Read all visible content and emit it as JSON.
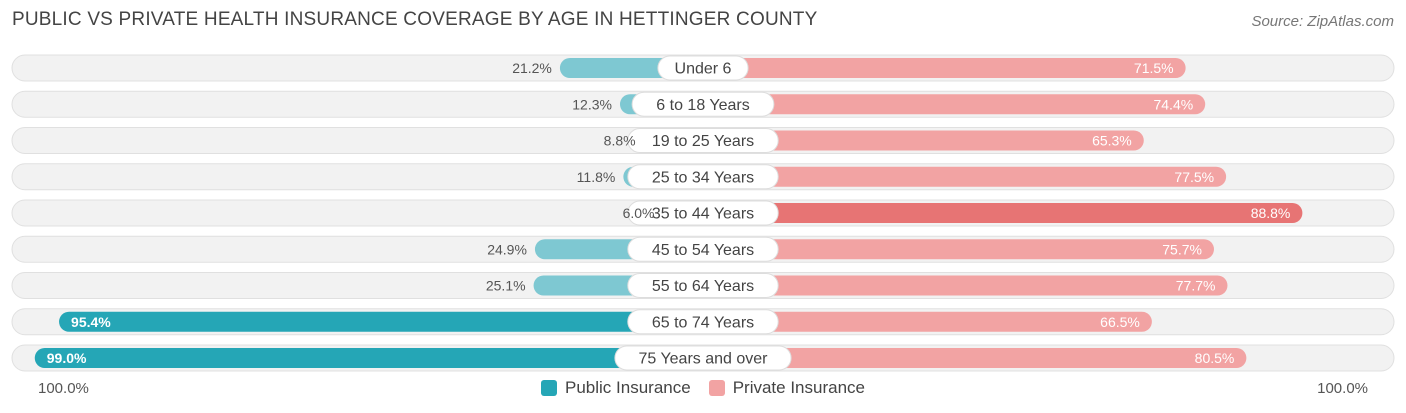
{
  "title": "PUBLIC VS PRIVATE HEALTH INSURANCE COVERAGE BY AGE IN HETTINGER COUNTY",
  "source": "Source: ZipAtlas.com",
  "axis_left_label": "100.0%",
  "axis_right_label": "100.0%",
  "colors": {
    "public_light": "#7ec8d2",
    "public_dark": "#25a6b6",
    "private_light": "#f2a3a3",
    "private_dark": "#e77474",
    "row_bg": "#f2f2f2"
  },
  "chart_data": {
    "type": "bar",
    "orientation": "horizontal-diverging",
    "title": "PUBLIC VS PRIVATE HEALTH INSURANCE COVERAGE BY AGE IN HETTINGER COUNTY",
    "categories": [
      "Under 6",
      "6 to 18 Years",
      "19 to 25 Years",
      "25 to 34 Years",
      "35 to 44 Years",
      "45 to 54 Years",
      "55 to 64 Years",
      "65 to 74 Years",
      "75 Years and over"
    ],
    "series": [
      {
        "name": "Public Insurance",
        "values": [
          21.2,
          12.3,
          8.8,
          11.8,
          6.0,
          24.9,
          25.1,
          95.4,
          99.0
        ],
        "labels": [
          "21.2%",
          "12.3%",
          "8.8%",
          "11.8%",
          "6.0%",
          "24.9%",
          "25.1%",
          "95.4%",
          "99.0%"
        ]
      },
      {
        "name": "Private Insurance",
        "values": [
          71.5,
          74.4,
          65.3,
          77.5,
          88.8,
          75.7,
          77.7,
          66.5,
          80.5
        ],
        "labels": [
          "71.5%",
          "74.4%",
          "65.3%",
          "77.5%",
          "88.8%",
          "75.7%",
          "77.7%",
          "66.5%",
          "80.5%"
        ]
      }
    ],
    "xlim": [
      -100,
      100
    ],
    "legend": "bottom-center"
  }
}
